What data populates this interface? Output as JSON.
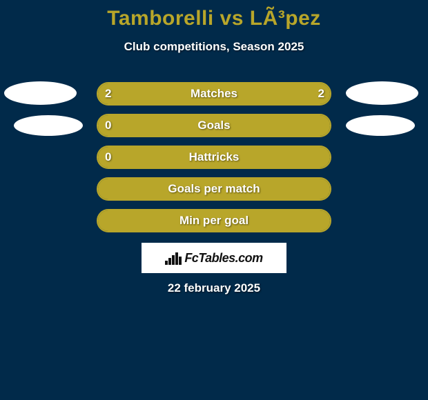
{
  "colors": {
    "page_bg": "#012a4a",
    "title_color": "#b8a62a",
    "subtitle_color": "#ffffff",
    "bar_track_border": "#b8a62a",
    "bar_fill": "#b8a62a",
    "bar_text": "#ffffff",
    "logo_blob": "#ffffff",
    "brand_box_bg": "#ffffff",
    "brand_text": "#111111",
    "footer_text": "#ffffff"
  },
  "title": {
    "player_a": "Tamborelli",
    "vs": " vs ",
    "player_b": "LÃ³pez"
  },
  "subtitle": "Club competitions, Season 2025",
  "logo_rows": 2,
  "stats": [
    {
      "label": "Matches",
      "left_value": "2",
      "right_value": "2",
      "left_pct": 50,
      "right_pct": 50,
      "show_left_val": true,
      "show_right_val": true,
      "fill_mode": "split"
    },
    {
      "label": "Goals",
      "left_value": "0",
      "right_value": "",
      "left_pct": 0,
      "right_pct": 0,
      "show_left_val": true,
      "show_right_val": false,
      "fill_mode": "full"
    },
    {
      "label": "Hattricks",
      "left_value": "0",
      "right_value": "",
      "left_pct": 0,
      "right_pct": 0,
      "show_left_val": true,
      "show_right_val": false,
      "fill_mode": "full"
    },
    {
      "label": "Goals per match",
      "left_value": "",
      "right_value": "",
      "left_pct": 0,
      "right_pct": 0,
      "show_left_val": false,
      "show_right_val": false,
      "fill_mode": "full"
    },
    {
      "label": "Min per goal",
      "left_value": "",
      "right_value": "",
      "left_pct": 0,
      "right_pct": 0,
      "show_left_val": false,
      "show_right_val": false,
      "fill_mode": "full"
    }
  ],
  "brand": {
    "text": "FcTables.com"
  },
  "footer_date": "22 february 2025"
}
